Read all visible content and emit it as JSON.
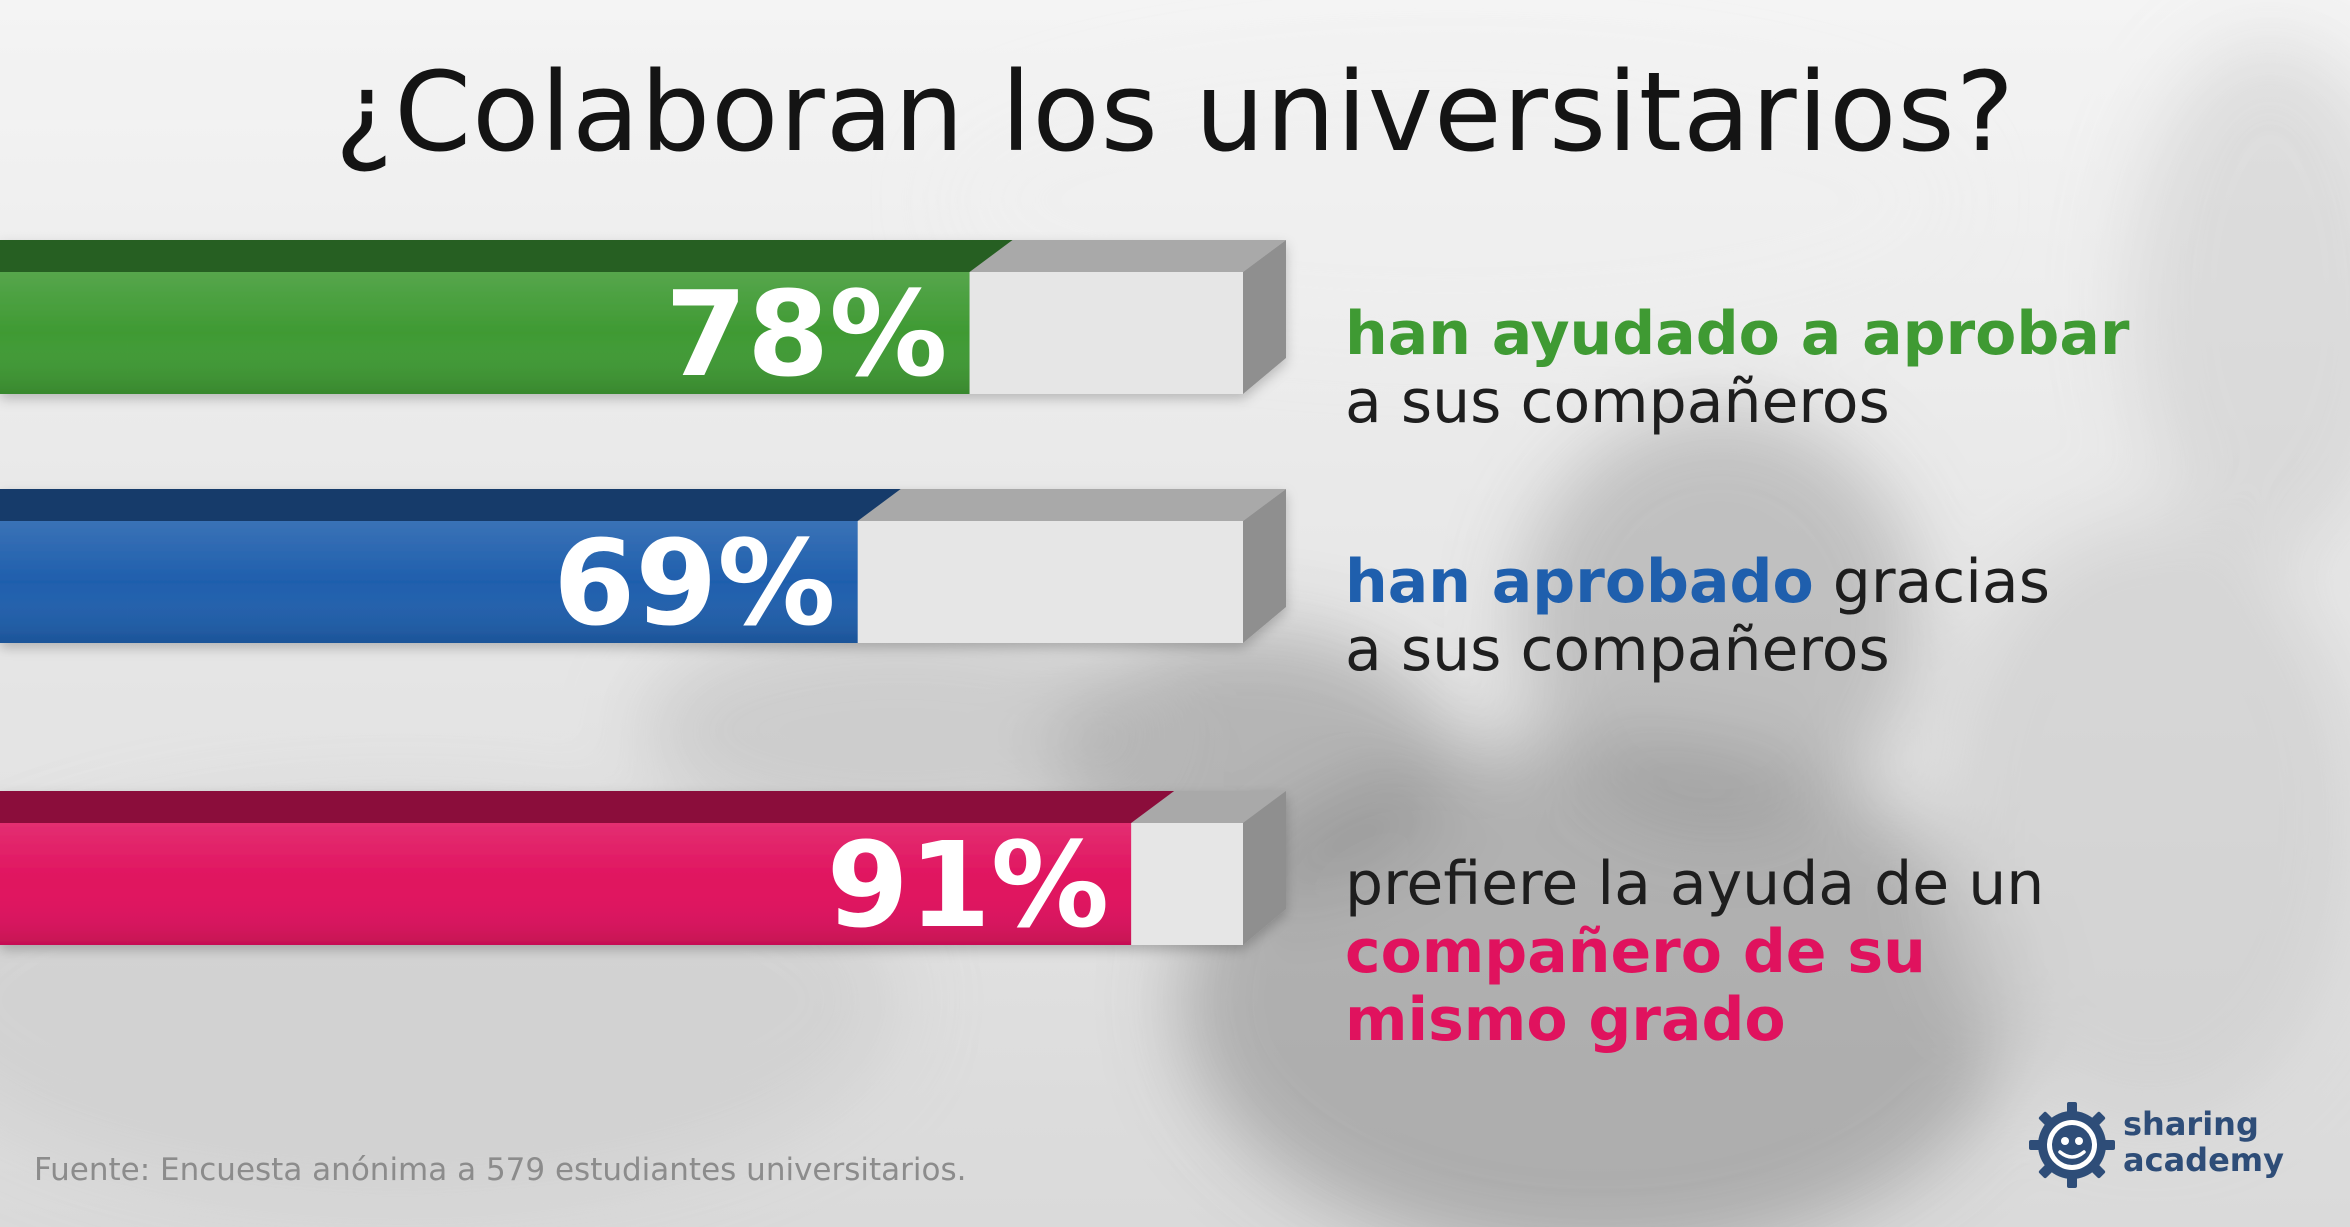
{
  "title": "¿Colaboran los universitarios?",
  "chart_data": {
    "type": "bar",
    "orientation": "horizontal",
    "xlim": [
      0,
      100
    ],
    "grid": false,
    "bars": [
      {
        "value": 78,
        "label": "78%",
        "color": "#3f9a33",
        "description": [
          {
            "text": "han ayudado a aprobar",
            "highlight": true
          },
          {
            "text": "a sus compañeros",
            "highlight": false
          }
        ],
        "description_lines": [
          [
            0
          ],
          [
            1
          ]
        ]
      },
      {
        "value": 69,
        "label": "69%",
        "color": "#1f5fad",
        "description": [
          {
            "text": "han aprobado",
            "highlight": true
          },
          {
            "text": "gracias",
            "highlight": false
          },
          {
            "text": "a sus compañeros",
            "highlight": false
          }
        ],
        "description_lines": [
          [
            0,
            1
          ],
          [
            2
          ]
        ]
      },
      {
        "value": 91,
        "label": "91%",
        "color": "#e0125e",
        "description": [
          {
            "text": "prefiere la ayuda de un",
            "highlight": false
          },
          {
            "text": "compañero de su",
            "highlight": true
          },
          {
            "text": "mismo grado",
            "highlight": true
          }
        ],
        "description_lines": [
          [
            0
          ],
          [
            1
          ],
          [
            2
          ]
        ]
      }
    ]
  },
  "source": "Fuente: Encuesta anónima a 579 estudiantes universitarios.",
  "brand": {
    "line1": "sharing",
    "line2": "academy",
    "logo_icon": "sharing-academy-logo-icon",
    "color": "#2e4d78"
  }
}
